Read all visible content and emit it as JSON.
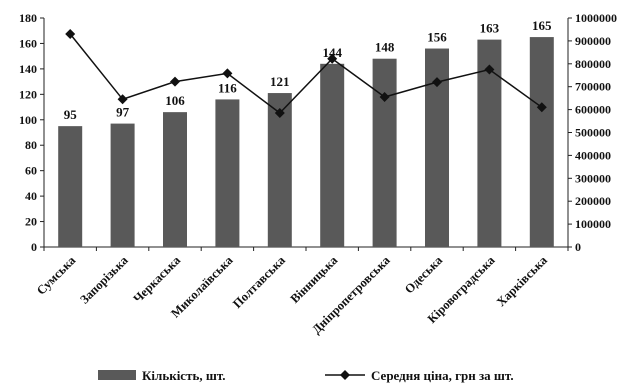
{
  "chart_data": {
    "type": "bar+line",
    "categories": [
      "Сумська",
      "Запорізька",
      "Черкаська",
      "Миколаївська",
      "Полтавська",
      "Вінницька",
      "Дніпропетровська",
      "Одеська",
      "Кіровоградська",
      "Харківська"
    ],
    "series": [
      {
        "name": "Кількість, шт.",
        "type": "bar",
        "axis": "left",
        "values": [
          95,
          97,
          106,
          116,
          121,
          144,
          148,
          156,
          163,
          165
        ],
        "color": "#595959"
      },
      {
        "name": "Середня ціна, грн за шт.",
        "type": "line",
        "axis": "right",
        "values": [
          930000,
          645000,
          722000,
          758000,
          585000,
          822000,
          655000,
          720000,
          775000,
          610000
        ],
        "color": "#111111",
        "marker": "diamond"
      }
    ],
    "y_left": {
      "min": 0,
      "max": 180,
      "step": 20
    },
    "y_right": {
      "min": 0,
      "max": 1000000,
      "step": 100000
    },
    "data_labels": [
      "95",
      "97",
      "106",
      "116",
      "121",
      "144",
      "148",
      "156",
      "163",
      "165"
    ],
    "legend_position": "bottom",
    "grid": false
  }
}
